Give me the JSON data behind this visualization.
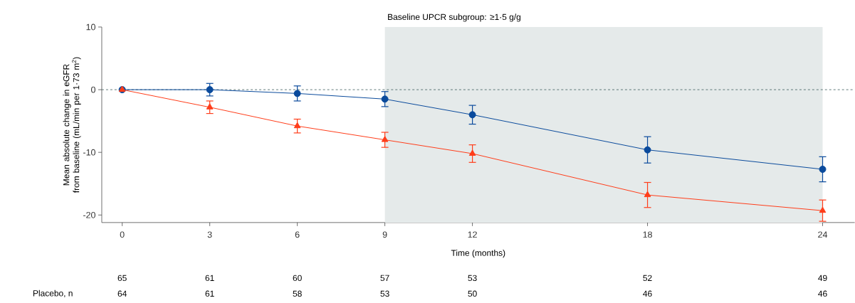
{
  "chart_data": {
    "type": "line",
    "x": [
      0,
      3,
      6,
      9,
      12,
      18,
      24
    ],
    "xlabel": "Time (months)",
    "ylabel": "Mean absolute change in eGFR from baseline (mL/min per 1·73 m$^{2}$)",
    "xlim": [
      -0.7,
      25.1
    ],
    "ylim": [
      -21.2,
      10
    ],
    "xticks": [
      0,
      3,
      6,
      9,
      12,
      18,
      24
    ],
    "yticks": [
      10,
      0,
      -10,
      -20
    ],
    "line_style": "solid",
    "series": [
      {
        "color": "#0a4a9c",
        "marker": "circle",
        "values": [
          0,
          0.0,
          -0.6,
          -1.5,
          -4.0,
          -9.6,
          -12.7
        ],
        "errors": [
          null,
          1.0,
          1.2,
          1.2,
          1.5,
          2.1,
          2.0
        ]
      },
      {
        "color": "#ff3d1a",
        "marker": "triangle",
        "values": [
          0,
          -2.8,
          -5.8,
          -8.0,
          -10.2,
          -16.8,
          -19.3
        ],
        "errors": [
          null,
          1.0,
          1.1,
          1.2,
          1.4,
          2.0,
          1.7
        ]
      }
    ],
    "ref_lines": [
      {
        "axis": "y",
        "value": 0,
        "color": "#3a5a5a",
        "line_style": "dashed"
      }
    ],
    "bands": [
      {
        "axis": "x",
        "from": 9,
        "to": 24,
        "label": "Baseline UPCR subgroup: ≥1·5 g/g",
        "color": "#e5eaea"
      }
    ],
    "annotations": [
      "65",
      "61",
      "60",
      "57",
      "53",
      "52",
      "49",
      "Placebo, n",
      "64",
      "61",
      "58",
      "53",
      "50",
      "46",
      "46"
    ]
  }
}
